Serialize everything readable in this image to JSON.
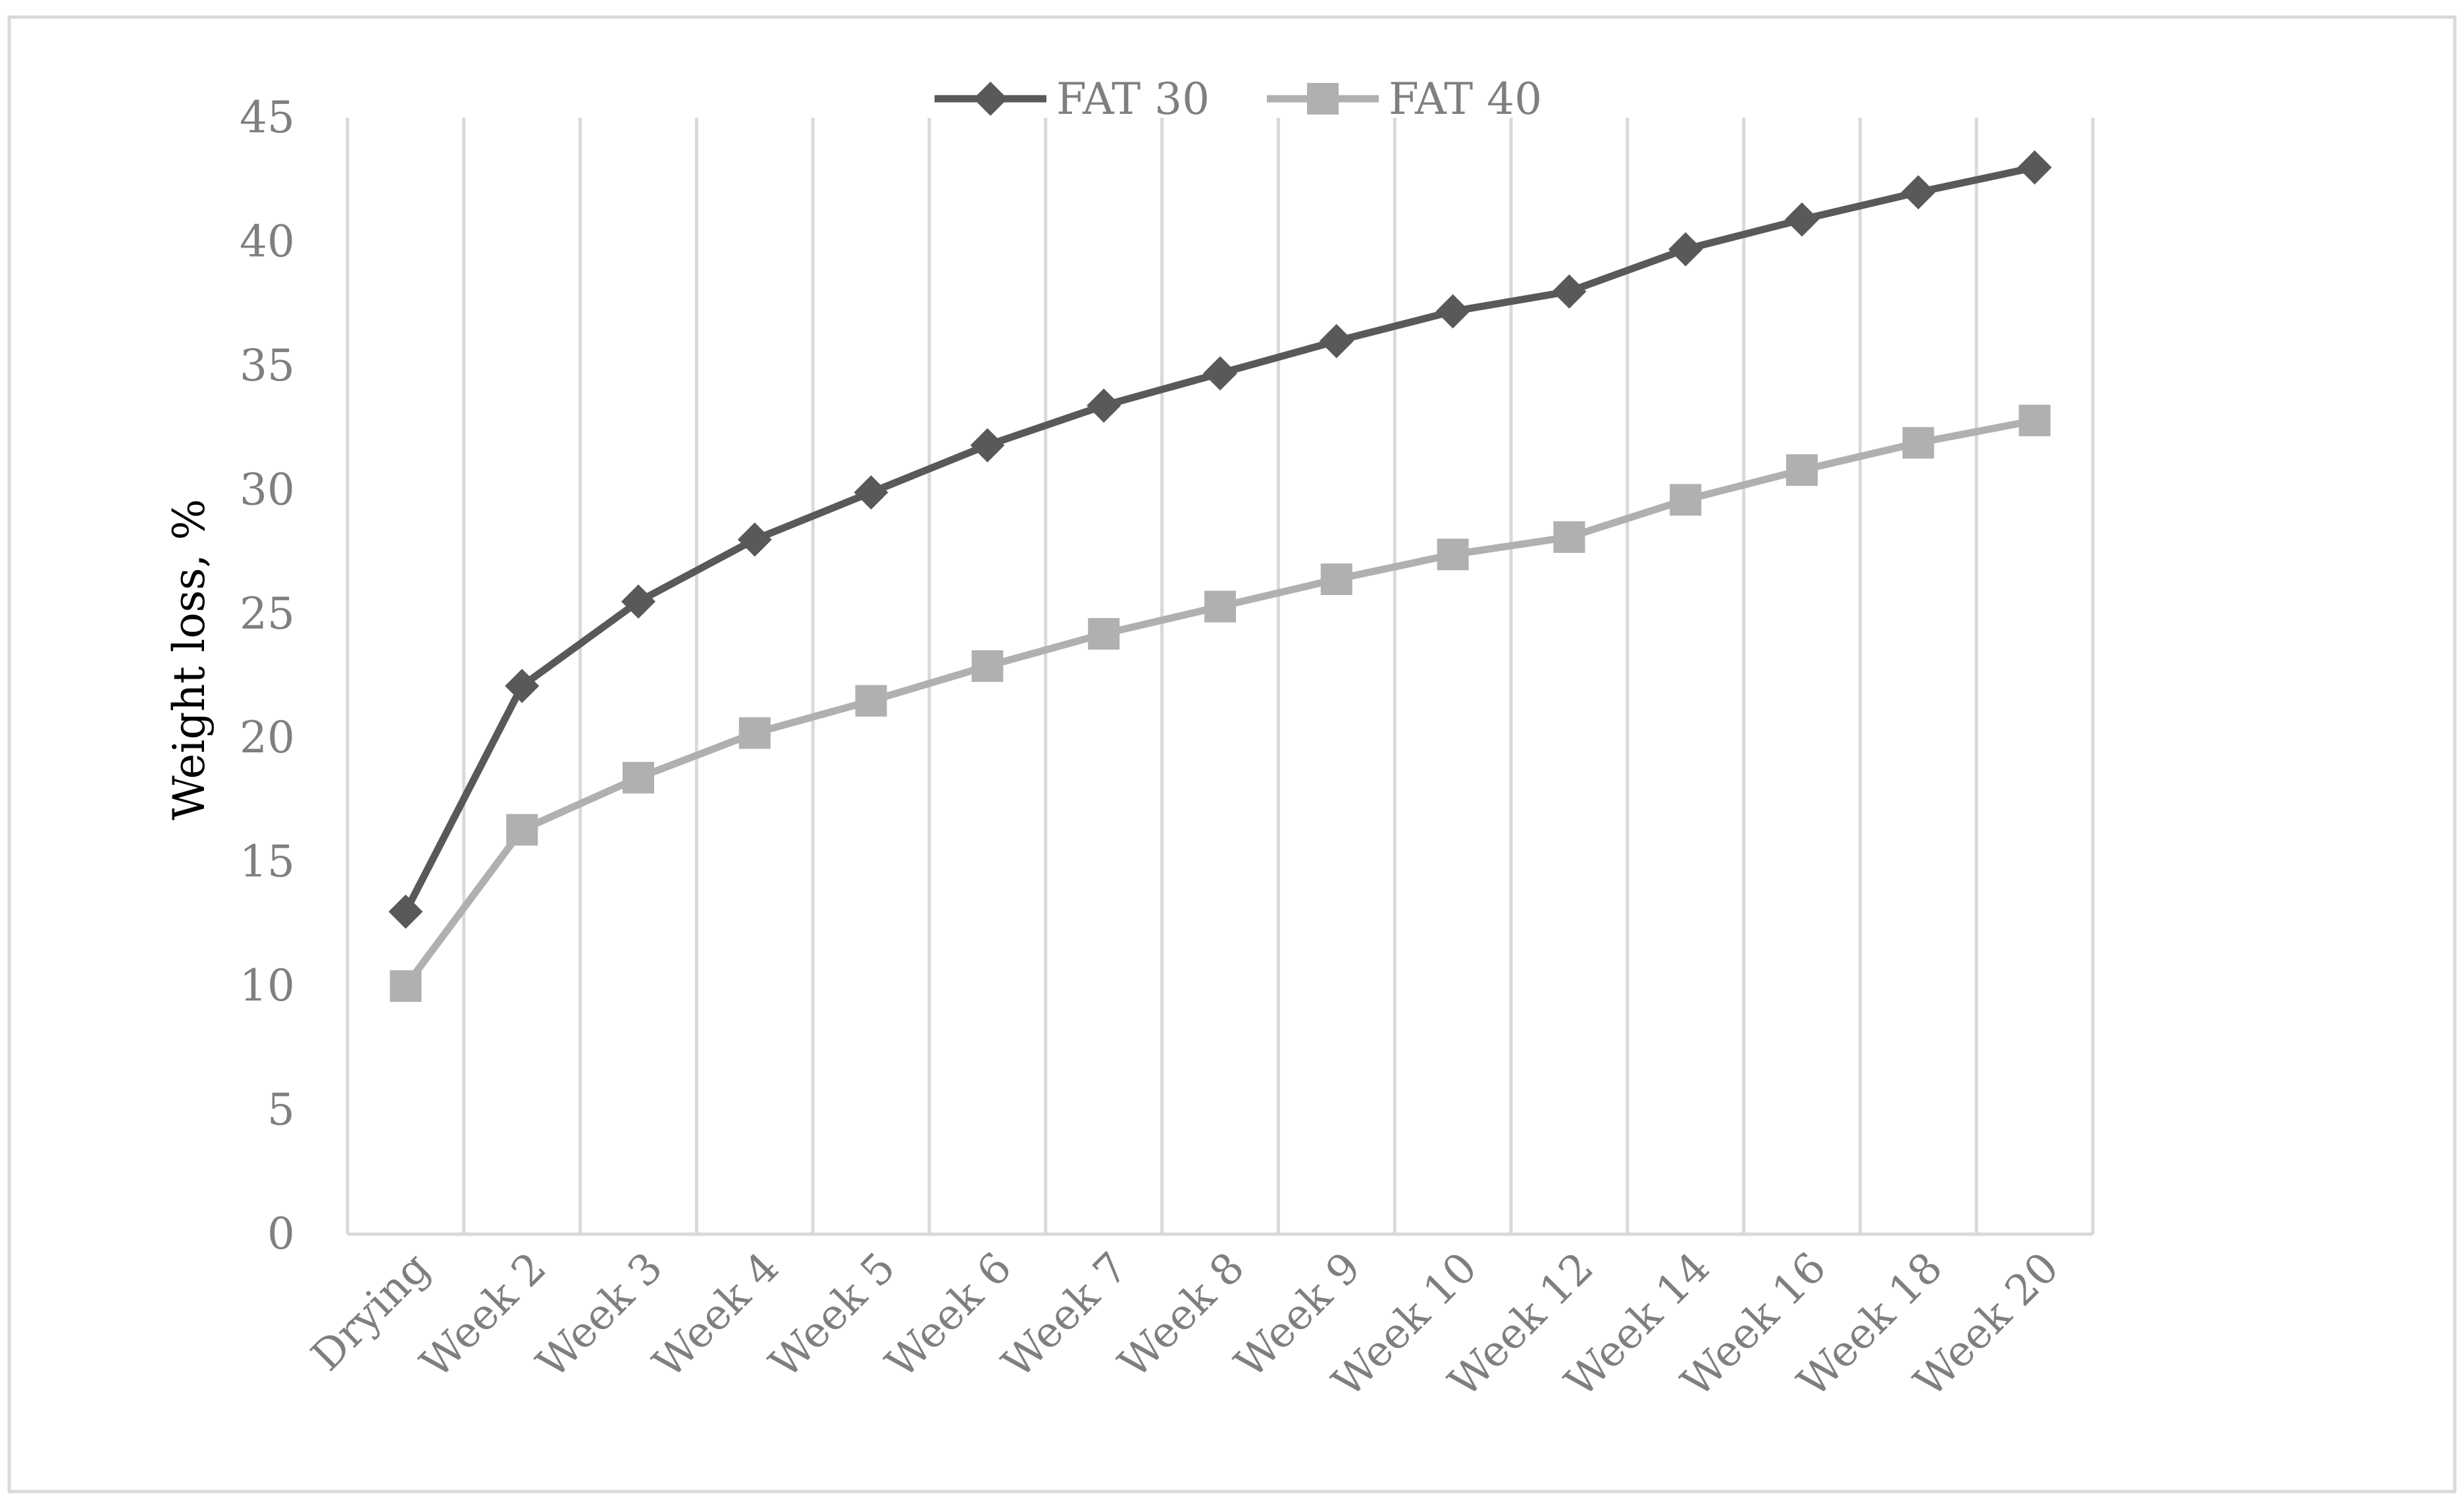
{
  "chart_data": {
    "type": "line",
    "categories": [
      "Drying",
      "Week 2",
      "Week 3",
      "Week 4",
      "Week 5",
      "Week 6",
      "Week 7",
      "Week 8",
      "Week 9",
      "Week 10",
      "Week 12",
      "Week 14",
      "Week 16",
      "Week 18",
      "Week 20"
    ],
    "series": [
      {
        "name": "FAT 30",
        "color": "#595959",
        "marker": "diamond",
        "values": [
          13.0,
          22.1,
          25.5,
          28.0,
          29.9,
          31.8,
          33.4,
          34.7,
          36.0,
          37.2,
          38.0,
          39.7,
          40.9,
          42.0,
          43.0
        ]
      },
      {
        "name": "FAT 40",
        "color": "#b0b0b0",
        "marker": "square",
        "values": [
          10.0,
          16.3,
          18.4,
          20.2,
          21.5,
          22.9,
          24.2,
          25.3,
          26.4,
          27.4,
          28.1,
          29.6,
          30.8,
          31.9,
          32.8
        ]
      }
    ],
    "title": "",
    "xlabel": "",
    "ylabel": "Weight loss, %",
    "ylim": [
      0,
      45
    ],
    "yticks": [
      "0",
      "5",
      "10",
      "15",
      "20",
      "25",
      "30",
      "35",
      "40",
      "45"
    ],
    "grid": "vertical",
    "legend_position": "top-center"
  }
}
